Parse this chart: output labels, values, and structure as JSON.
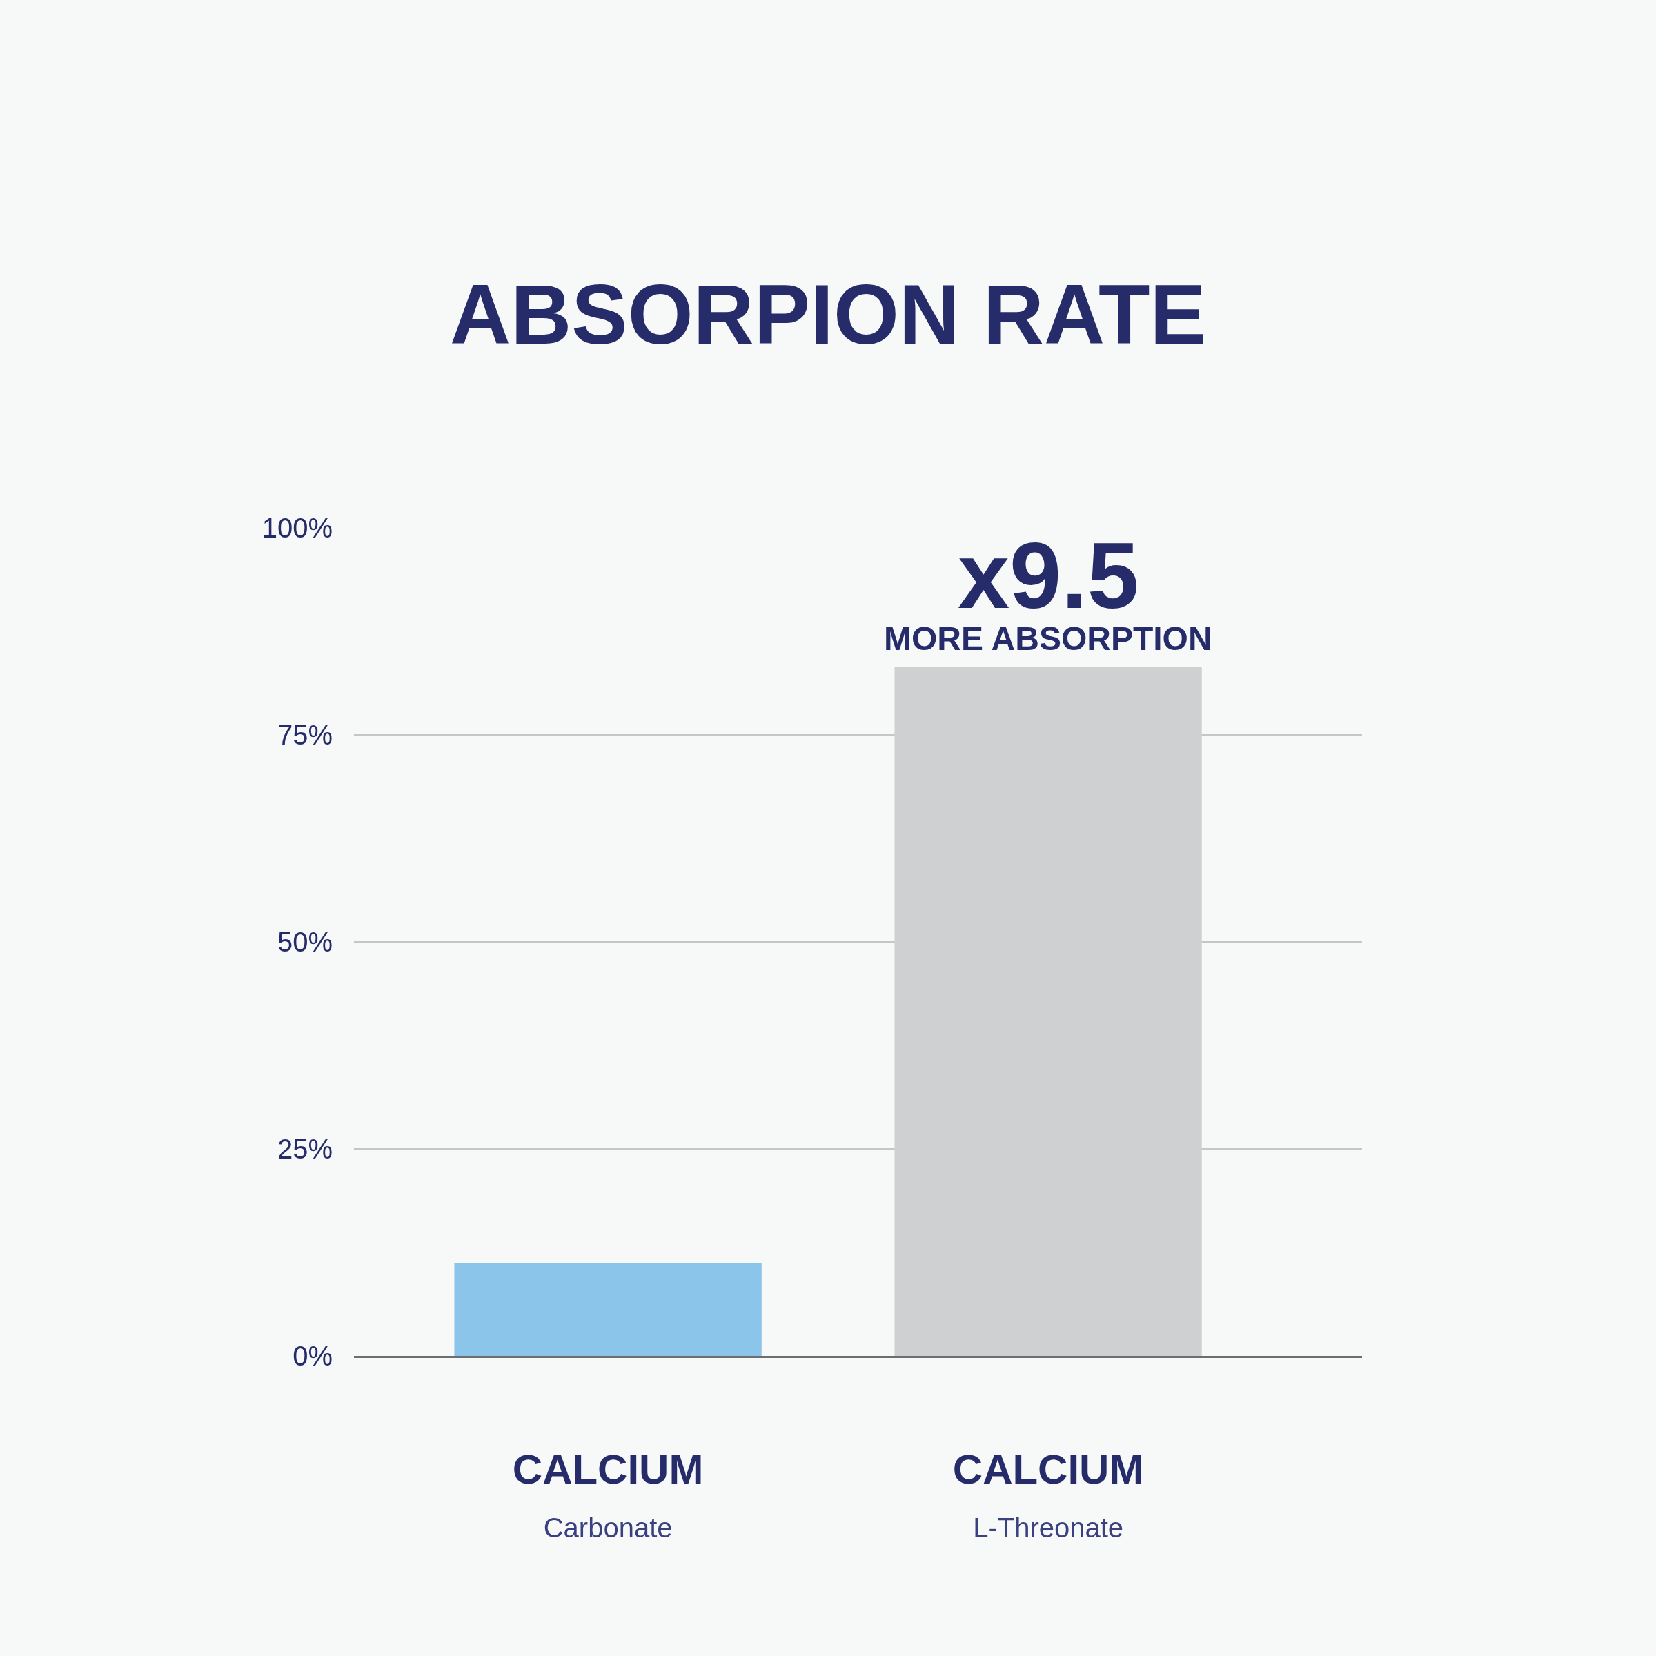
{
  "chart_data": {
    "type": "bar",
    "title": "ABSORPION RATE",
    "categories": [
      "CALCIUM\nCarbonate",
      "CALCIUM\nL-Threonate"
    ],
    "values": [
      11.2,
      83.2
    ],
    "colors": [
      "#8bc5ea",
      "#cfd0d2"
    ],
    "ylim": [
      0,
      100
    ],
    "yticks": [
      {
        "value": 0,
        "label": "0%"
      },
      {
        "value": 25,
        "label": "25%"
      },
      {
        "value": 50,
        "label": "50%"
      },
      {
        "value": 75,
        "label": "75%"
      },
      {
        "value": 100,
        "label": "100%"
      }
    ],
    "grid": "y",
    "annotations": [
      "x9.5",
      "MORE ABSORPTION"
    ]
  }
}
